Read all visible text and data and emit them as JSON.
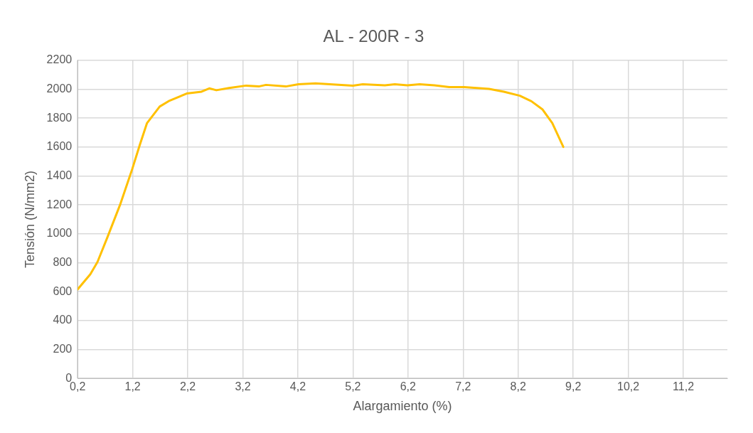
{
  "chart_data": {
    "type": "line",
    "title": "AL - 200R - 3",
    "xlabel": "Alargamiento (%)",
    "ylabel": "Tensión (N/mm2)",
    "x": [
      0.2,
      0.43,
      0.56,
      0.74,
      0.97,
      1.19,
      1.33,
      1.46,
      1.69,
      1.87,
      2.18,
      2.45,
      2.59,
      2.72,
      2.95,
      3.26,
      3.49,
      3.62,
      3.98,
      4.21,
      4.52,
      5.2,
      5.38,
      5.78,
      5.96,
      6.19,
      6.41,
      6.68,
      6.95,
      7.22,
      7.67,
      7.94,
      8.23,
      8.44,
      8.64,
      8.82,
      9.02
    ],
    "series": [
      {
        "color": "#ffc000",
        "values": [
          616,
          720,
          805,
          975,
          1200,
          1446,
          1616,
          1766,
          1880,
          1921,
          1970,
          1983,
          2006,
          1993,
          2008,
          2025,
          2019,
          2030,
          2019,
          2034,
          2040,
          2025,
          2034,
          2027,
          2034,
          2027,
          2034,
          2027,
          2015,
          2015,
          2002,
          1983,
          1955,
          1917,
          1861,
          1766,
          1601
        ]
      }
    ],
    "xlim": [
      0.2,
      12.0
    ],
    "xticks": [
      {
        "value": 0.2,
        "label": "0,2"
      },
      {
        "value": 1.2,
        "label": "1,2"
      },
      {
        "value": 2.2,
        "label": "2,2"
      },
      {
        "value": 3.2,
        "label": "3,2"
      },
      {
        "value": 4.2,
        "label": "4,2"
      },
      {
        "value": 5.2,
        "label": "5,2"
      },
      {
        "value": 6.2,
        "label": "6,2"
      },
      {
        "value": 7.2,
        "label": "7,2"
      },
      {
        "value": 8.2,
        "label": "8,2"
      },
      {
        "value": 9.2,
        "label": "9,2"
      },
      {
        "value": 10.2,
        "label": "10,2"
      },
      {
        "value": 11.2,
        "label": "11,2"
      }
    ],
    "ylim": [
      0,
      2200
    ],
    "yticks": [
      0,
      200,
      400,
      600,
      800,
      1000,
      1200,
      1400,
      1600,
      1800,
      2000,
      2200
    ],
    "grid": true,
    "legend": false,
    "marker": "none",
    "line_style": "solid"
  }
}
